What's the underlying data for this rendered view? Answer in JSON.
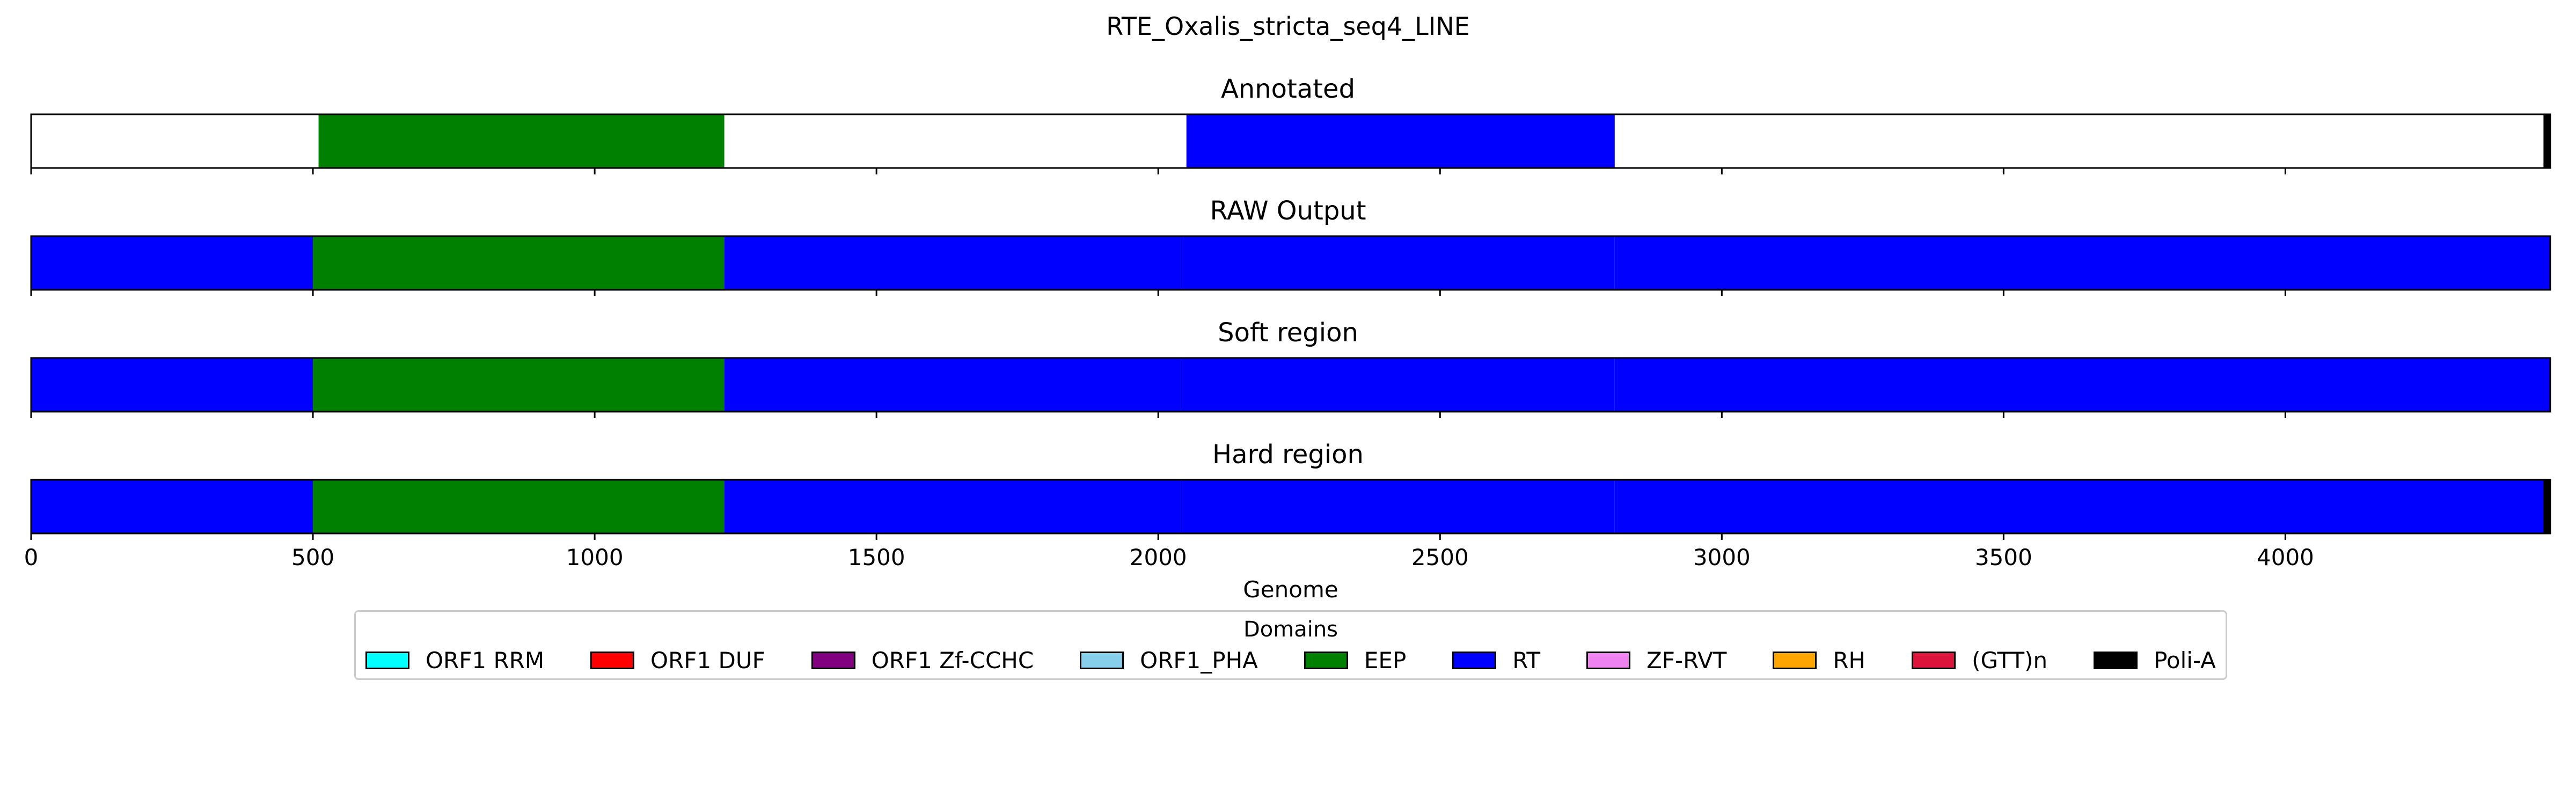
{
  "chart_data": {
    "type": "bar",
    "title": "RTE_Oxalis_stricta_seq4_LINE",
    "xlabel": "Genome",
    "xlim": [
      0,
      4470
    ],
    "xticks": [
      0,
      500,
      1000,
      1500,
      2000,
      2500,
      3000,
      3500,
      4000
    ],
    "domain_colors": {
      "ORF1 RRM": "#00ffff",
      "ORF1 DUF": "#ff0000",
      "ORF1 Zf-CCHC": "#800080",
      "ORF1_PHA": "#87ceeb",
      "EEP": "#008000",
      "RT": "#0000ff",
      "ZF-RVT": "#ee82ee",
      "RH": "#ffa500",
      "(GTT)n": "#dc143c",
      "Poli-A": "#000000"
    },
    "panels": [
      {
        "title": "Annotated",
        "segments": [
          {
            "start": 510,
            "end": 1230,
            "domain": "EEP"
          },
          {
            "start": 2050,
            "end": 2810,
            "domain": "RT"
          },
          {
            "start": 4458,
            "end": 4470,
            "domain": "Poli-A"
          }
        ]
      },
      {
        "title": "RAW Output",
        "segments": [
          {
            "start": 0,
            "end": 500,
            "domain": "RT"
          },
          {
            "start": 500,
            "end": 1230,
            "domain": "EEP"
          },
          {
            "start": 1230,
            "end": 2040,
            "domain": "RT"
          },
          {
            "start": 2040,
            "end": 2810,
            "domain": "RT"
          },
          {
            "start": 2810,
            "end": 4470,
            "domain": "RT"
          }
        ]
      },
      {
        "title": "Soft region",
        "segments": [
          {
            "start": 0,
            "end": 500,
            "domain": "RT"
          },
          {
            "start": 500,
            "end": 1230,
            "domain": "EEP"
          },
          {
            "start": 1230,
            "end": 2040,
            "domain": "RT"
          },
          {
            "start": 2040,
            "end": 2810,
            "domain": "RT"
          },
          {
            "start": 2810,
            "end": 4470,
            "domain": "RT"
          }
        ]
      },
      {
        "title": "Hard region",
        "segments": [
          {
            "start": 0,
            "end": 500,
            "domain": "RT"
          },
          {
            "start": 500,
            "end": 1230,
            "domain": "EEP"
          },
          {
            "start": 1230,
            "end": 2040,
            "domain": "RT"
          },
          {
            "start": 2040,
            "end": 2810,
            "domain": "RT"
          },
          {
            "start": 2810,
            "end": 4470,
            "domain": "RT"
          },
          {
            "start": 4458,
            "end": 4470,
            "domain": "Poli-A"
          }
        ]
      }
    ],
    "legend": {
      "title": "Domains",
      "entries": [
        "ORF1 RRM",
        "ORF1 DUF",
        "ORF1 Zf-CCHC",
        "ORF1_PHA",
        "EEP",
        "RT",
        "ZF-RVT",
        "RH",
        "(GTT)n",
        "Poli-A"
      ]
    }
  }
}
